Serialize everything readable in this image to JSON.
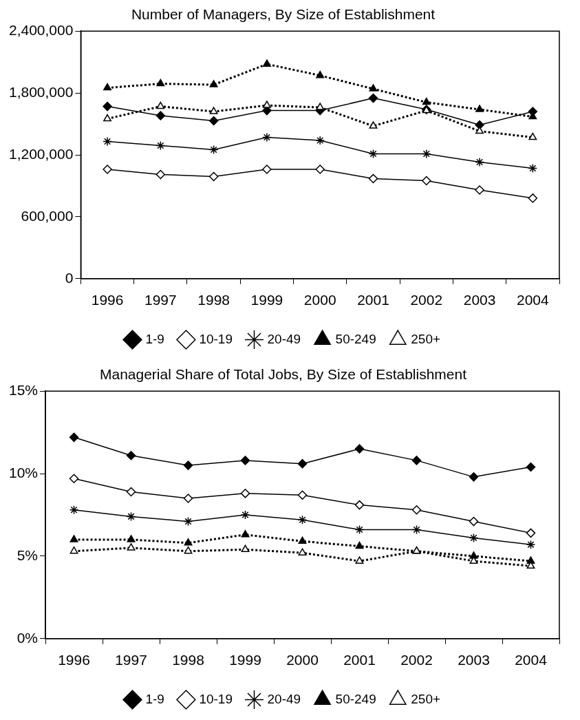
{
  "chart_data": [
    {
      "type": "line",
      "title": "Number of Managers, By Size of Establishment",
      "categories": [
        "1996",
        "1997",
        "1998",
        "1999",
        "2000",
        "2001",
        "2002",
        "2003",
        "2004"
      ],
      "series": [
        {
          "name": "1-9",
          "color": "#000000",
          "marker": "diamond",
          "line_style": "solid",
          "values": [
            1670000,
            1580000,
            1530000,
            1630000,
            1630000,
            1750000,
            1640000,
            1490000,
            1620000
          ]
        },
        {
          "name": "10-19",
          "color": "#000000",
          "marker": "diamond",
          "line_style": "solid",
          "values": [
            1060000,
            1010000,
            990000,
            1060000,
            1060000,
            970000,
            950000,
            860000,
            780000
          ]
        },
        {
          "name": "20-49",
          "color": "#000000",
          "marker": "cross",
          "line_style": "solid",
          "values": [
            1330000,
            1290000,
            1250000,
            1370000,
            1340000,
            1210000,
            1210000,
            1130000,
            1070000
          ]
        },
        {
          "name": "50-249",
          "color": "#000000",
          "marker": "triangle",
          "line_style": "dotted",
          "values": [
            1850000,
            1890000,
            1880000,
            2080000,
            1970000,
            1840000,
            1710000,
            1640000,
            1570000
          ]
        },
        {
          "name": "250+",
          "color": "#000000",
          "marker": "triangle",
          "line_style": "dotted",
          "values": [
            1550000,
            1670000,
            1620000,
            1680000,
            1660000,
            1480000,
            1630000,
            1430000,
            1370000
          ]
        }
      ],
      "ylim": [
        0,
        2400000
      ],
      "yticks": [
        {
          "value": 0,
          "label": "0"
        },
        {
          "value": 600000,
          "label": "600,000"
        },
        {
          "value": 1200000,
          "label": "1,200,000"
        },
        {
          "value": 1800000,
          "label": "1,800,000"
        },
        {
          "value": 2400000,
          "label": "2,400,000"
        }
      ],
      "grid": false,
      "legend": "bottom"
    },
    {
      "type": "line",
      "title": "Managerial Share of Total Jobs, By Size of Establishment",
      "categories": [
        "1996",
        "1997",
        "1998",
        "1999",
        "2000",
        "2001",
        "2002",
        "2003",
        "2004"
      ],
      "series": [
        {
          "name": "1-9",
          "color": "#000000",
          "marker": "diamond",
          "line_style": "solid",
          "values": [
            12.2,
            11.1,
            10.5,
            10.8,
            10.6,
            11.5,
            10.8,
            9.8,
            10.4
          ]
        },
        {
          "name": "10-19",
          "color": "#000000",
          "marker": "diamond",
          "line_style": "solid",
          "values": [
            9.7,
            8.9,
            8.5,
            8.8,
            8.7,
            8.1,
            7.8,
            7.1,
            6.4
          ]
        },
        {
          "name": "20-49",
          "color": "#000000",
          "marker": "cross",
          "line_style": "solid",
          "values": [
            7.8,
            7.4,
            7.1,
            7.5,
            7.2,
            6.6,
            6.6,
            6.1,
            5.7
          ]
        },
        {
          "name": "50-249",
          "color": "#000000",
          "marker": "triangle",
          "line_style": "dotted",
          "values": [
            6.0,
            6.0,
            5.8,
            6.3,
            5.9,
            5.6,
            5.3,
            5.0,
            4.7
          ]
        },
        {
          "name": "250+",
          "color": "#000000",
          "marker": "triangle",
          "line_style": "dotted",
          "values": [
            5.3,
            5.5,
            5.3,
            5.4,
            5.2,
            4.7,
            5.3,
            4.7,
            4.4
          ]
        }
      ],
      "ylim": [
        0,
        15
      ],
      "yticks": [
        {
          "value": 0,
          "label": "0%"
        },
        {
          "value": 5,
          "label": "5%"
        },
        {
          "value": 10,
          "label": "10%"
        },
        {
          "value": 15,
          "label": "15%"
        }
      ],
      "grid": false,
      "legend": "bottom"
    }
  ]
}
